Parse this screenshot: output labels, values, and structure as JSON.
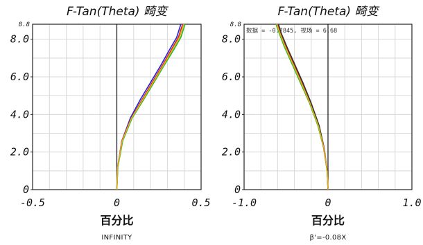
{
  "chart_data": [
    {
      "type": "line",
      "title": "F-Tan(Theta) 畸变",
      "xlabel": "百分比",
      "subtitle": "INFINITY",
      "xlim": [
        -0.5,
        0.5
      ],
      "ylim": [
        0,
        8.8
      ],
      "ymax_label": "8.8",
      "x_ticks": [
        "-0.5",
        "0",
        "0.5"
      ],
      "y_ticks": [
        "0",
        "2.0",
        "4.0",
        "6.0",
        "8.0"
      ],
      "grid": true,
      "series": [
        {
          "color": "#2222dd",
          "x": [
            0,
            0.005,
            0.03,
            0.08,
            0.14,
            0.2,
            0.26,
            0.31,
            0.355,
            0.38
          ],
          "y": [
            0,
            1.2,
            2.6,
            3.8,
            4.8,
            5.7,
            6.6,
            7.4,
            8.1,
            8.8
          ]
        },
        {
          "color": "#e02020",
          "x": [
            0,
            0.005,
            0.03,
            0.085,
            0.15,
            0.21,
            0.27,
            0.32,
            0.365,
            0.39
          ],
          "y": [
            0,
            1.2,
            2.6,
            3.8,
            4.8,
            5.7,
            6.6,
            7.4,
            8.1,
            8.8
          ]
        },
        {
          "color": "#22bb22",
          "x": [
            0,
            0.006,
            0.035,
            0.09,
            0.16,
            0.22,
            0.28,
            0.335,
            0.38,
            0.405
          ],
          "y": [
            0,
            1.2,
            2.6,
            3.8,
            4.8,
            5.7,
            6.6,
            7.4,
            8.1,
            8.8
          ]
        },
        {
          "color": "#e0b020",
          "x": [
            0,
            0.005,
            0.032,
            0.087,
            0.155,
            0.215,
            0.275,
            0.327,
            0.372,
            0.397
          ],
          "y": [
            0,
            1.2,
            2.6,
            3.8,
            4.8,
            5.7,
            6.6,
            7.4,
            8.1,
            8.8
          ]
        }
      ]
    },
    {
      "type": "line",
      "title": "F-Tan(Theta) 畸变",
      "xlabel": "百分比",
      "subtitle": "β'=-0.08X",
      "readout": "数据 = -0.7845, 视场 = 6.68",
      "xlim": [
        -1.0,
        1.0
      ],
      "ylim": [
        0,
        8.8
      ],
      "ymax_label": "8.8",
      "x_ticks": [
        "-1.0",
        "0",
        "1.0"
      ],
      "y_ticks": [
        "0",
        "2.0",
        "4.0",
        "6.0",
        "8.0"
      ],
      "grid": true,
      "series": [
        {
          "color": "#22bb22",
          "x": [
            0,
            -0.01,
            -0.05,
            -0.12,
            -0.22,
            -0.33,
            -0.43,
            -0.52,
            -0.58,
            -0.62
          ],
          "y": [
            0,
            1.0,
            2.2,
            3.4,
            4.6,
            5.7,
            6.7,
            7.6,
            8.3,
            8.8
          ]
        },
        {
          "color": "#e02020",
          "x": [
            0,
            -0.01,
            -0.05,
            -0.11,
            -0.21,
            -0.31,
            -0.41,
            -0.5,
            -0.565,
            -0.6
          ],
          "y": [
            0,
            1.0,
            2.2,
            3.4,
            4.6,
            5.7,
            6.7,
            7.6,
            8.3,
            8.8
          ]
        },
        {
          "color": "#333333",
          "x": [
            0,
            -0.01,
            -0.045,
            -0.105,
            -0.2,
            -0.3,
            -0.4,
            -0.49,
            -0.555,
            -0.59
          ],
          "y": [
            0,
            1.0,
            2.2,
            3.4,
            4.6,
            5.7,
            6.7,
            7.6,
            8.3,
            8.8
          ]
        },
        {
          "color": "#e0b020",
          "x": [
            0,
            -0.01,
            -0.048,
            -0.115,
            -0.215,
            -0.32,
            -0.42,
            -0.51,
            -0.572,
            -0.61
          ],
          "y": [
            0,
            1.0,
            2.2,
            3.4,
            4.6,
            5.7,
            6.7,
            7.6,
            8.3,
            8.8
          ]
        }
      ]
    }
  ]
}
